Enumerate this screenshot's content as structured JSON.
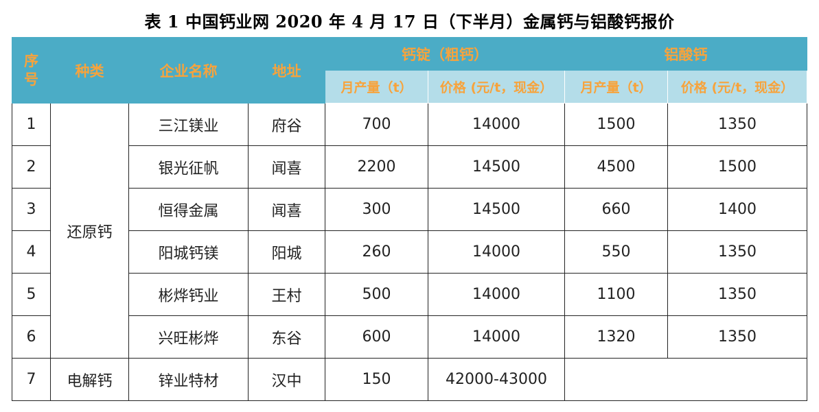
{
  "title": "表 1 中国钙业网 2020 年 4 月 17 日（下半月）金属钙与铝酸钙报价",
  "header": {
    "seq": "序号",
    "kind": "种类",
    "company": "企业名称",
    "address": "地址",
    "ingot_group": "钙锭（粗钙）",
    "aluminate_group": "铝酸钙",
    "monthly_output": "月产量（t）",
    "price": "价格 (元/t，现金）"
  },
  "kinds": {
    "reduction": "还原钙",
    "electrolytic": "电解钙"
  },
  "rows": [
    {
      "seq": "1",
      "company": "三江镁业",
      "address": "府谷",
      "ingot_output": "700",
      "ingot_price": "14000",
      "al_output": "1500",
      "al_price": "1350"
    },
    {
      "seq": "2",
      "company": "银光征帆",
      "address": "闻喜",
      "ingot_output": "2200",
      "ingot_price": "14500",
      "al_output": "4500",
      "al_price": "1500"
    },
    {
      "seq": "3",
      "company": "恒得金属",
      "address": "闻喜",
      "ingot_output": "300",
      "ingot_price": "14500",
      "al_output": "660",
      "al_price": "1400"
    },
    {
      "seq": "4",
      "company": "阳城钙镁",
      "address": "阳城",
      "ingot_output": "260",
      "ingot_price": "14000",
      "al_output": "550",
      "al_price": "1350"
    },
    {
      "seq": "5",
      "company": "彬烨钙业",
      "address": "王村",
      "ingot_output": "500",
      "ingot_price": "14000",
      "al_output": "1100",
      "al_price": "1350"
    },
    {
      "seq": "6",
      "company": "兴旺彬烨",
      "address": "东谷",
      "ingot_output": "600",
      "ingot_price": "14000",
      "al_output": "1320",
      "al_price": "1350"
    },
    {
      "seq": "7",
      "company": "锌业特材",
      "address": "汉中",
      "ingot_output": "150",
      "ingot_price": "42000-43000",
      "al_output": "",
      "al_price": ""
    }
  ],
  "colors": {
    "header_bg": "#4bacc6",
    "subheader_bg": "#b4dde9",
    "header_text": "#f7a33c"
  }
}
